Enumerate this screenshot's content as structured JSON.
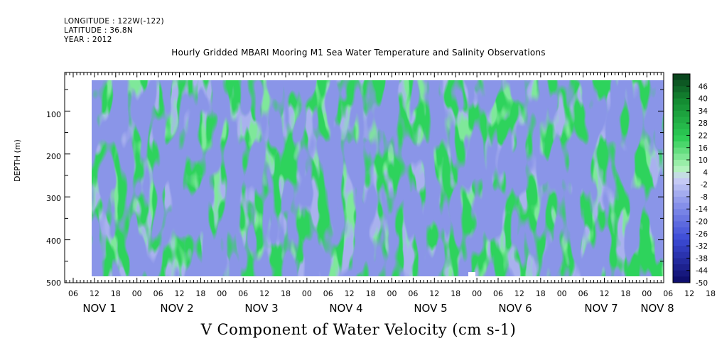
{
  "header": {
    "longitude": "LONGITUDE : 122W(-122)",
    "latitude": "LATITUDE : 36.8N",
    "year": "YEAR : 2012"
  },
  "chart_data": {
    "type": "heatmap",
    "title": "Hourly Gridded MBARI Mooring M1 Sea Water Temperature and Salinity Observations",
    "xlabel": "V Component of Water Velocity (cm s-1)",
    "ylabel": "DEPTH (m)",
    "y_ticks": [
      "100",
      "200",
      "300",
      "400",
      "500"
    ],
    "y_range": [
      500,
      10
    ],
    "x_hour_ticks": [
      "06",
      "12",
      "18",
      "00",
      "06",
      "12",
      "18",
      "00",
      "06",
      "12",
      "18",
      "00",
      "06",
      "12",
      "18",
      "00",
      "06",
      "12",
      "18",
      "00",
      "06",
      "12",
      "18",
      "00",
      "06",
      "12",
      "18",
      "00",
      "06",
      "12",
      "18",
      "00"
    ],
    "x_day_labels": [
      "NOV 1",
      "NOV 2",
      "NOV 3",
      "NOV 4",
      "NOV 5",
      "NOV 6",
      "NOV 7",
      "NOV 8"
    ],
    "colorbar_labels": [
      "46",
      "40",
      "34",
      "28",
      "22",
      "16",
      "10",
      "4",
      "-2",
      "-8",
      "-14",
      "-20",
      "-26",
      "-32",
      "-38",
      "-44",
      "-50"
    ],
    "colorbar_range": [
      -50,
      52
    ]
  }
}
